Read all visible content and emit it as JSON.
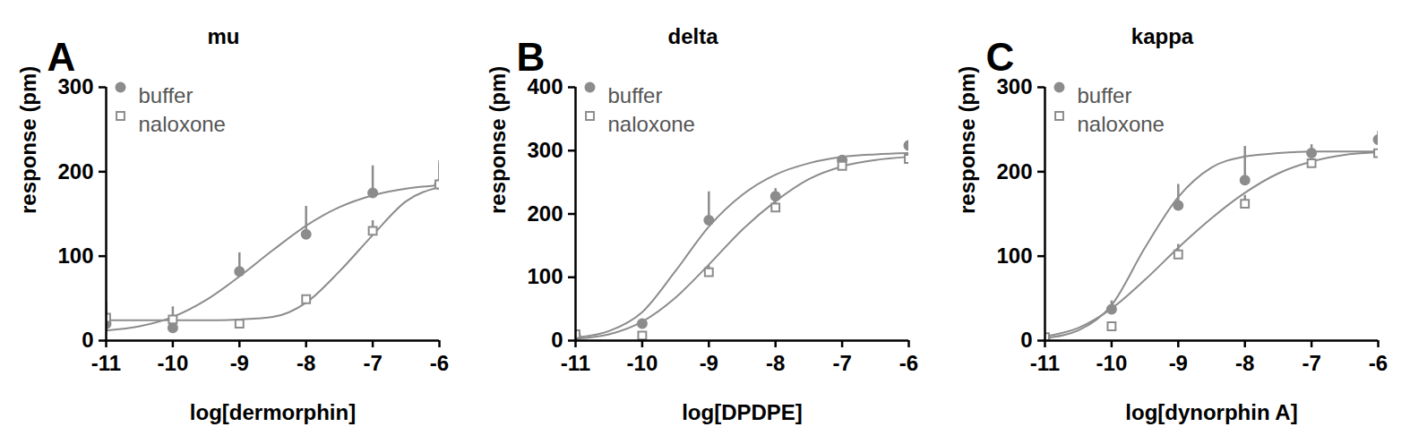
{
  "chart_data": [
    {
      "type": "line",
      "panel": "A",
      "title": "mu",
      "x_label": "log[dermorphin]",
      "y_label": "response (pm)",
      "xlim": [
        -11,
        -6
      ],
      "xticks": [
        -11,
        -10,
        -9,
        -8,
        -7,
        -6
      ],
      "ylim": [
        0,
        300
      ],
      "yticks": [
        0,
        100,
        200,
        300
      ],
      "legend": "top-left",
      "x": [
        -11,
        -10,
        -9,
        -8,
        -7,
        -6
      ],
      "series": [
        {
          "name": "buffer",
          "color": "#8c8c8c",
          "marker": "circle",
          "values": [
            20,
            15,
            82,
            126,
            175,
            185
          ],
          "errors": [
            5,
            25,
            22,
            33,
            32,
            28
          ],
          "fit": {
            "x": [
              -11,
              -10.5,
              -10,
              -9.5,
              -9,
              -8.5,
              -8,
              -7.5,
              -7,
              -6.5,
              -6
            ],
            "values": [
              12,
              17,
              28,
              48,
              76,
              107,
              136,
              158,
              172,
              180,
              184
            ]
          }
        },
        {
          "name": "naloxone",
          "color": "#8c8c8c",
          "marker": "square-open",
          "values": [
            27,
            25,
            20,
            49,
            130,
            185
          ],
          "errors": [
            18,
            5,
            4,
            5,
            12,
            25
          ],
          "fit": {
            "x": [
              -11,
              -10.5,
              -10,
              -9.5,
              -9,
              -8.5,
              -8,
              -7.5,
              -7,
              -6.5,
              -6
            ],
            "values": [
              24,
              24,
              24,
              24,
              25,
              28,
              45,
              82,
              125,
              165,
              182
            ]
          }
        }
      ]
    },
    {
      "type": "line",
      "panel": "B",
      "title": "delta",
      "x_label": "log[DPDPE]",
      "y_label": "response (pm)",
      "xlim": [
        -11,
        -6
      ],
      "xticks": [
        -11,
        -10,
        -9,
        -8,
        -7,
        -6
      ],
      "ylim": [
        0,
        400
      ],
      "yticks": [
        0,
        100,
        200,
        300,
        400
      ],
      "legend": "top-left",
      "x": [
        -11,
        -10,
        -9,
        -8,
        -7,
        -6
      ],
      "series": [
        {
          "name": "buffer",
          "color": "#8c8c8c",
          "marker": "circle",
          "values": [
            8,
            27,
            190,
            228,
            285,
            308
          ],
          "errors": [
            3,
            3,
            45,
            12,
            5,
            8
          ],
          "fit": {
            "x": [
              -11,
              -10.5,
              -10,
              -9.5,
              -9,
              -8.5,
              -8,
              -7.5,
              -7,
              -6.5,
              -6
            ],
            "values": [
              5,
              15,
              45,
              110,
              180,
              230,
              262,
              280,
              290,
              294,
              296
            ]
          }
        },
        {
          "name": "naloxone",
          "color": "#8c8c8c",
          "marker": "square-open",
          "values": [
            10,
            8,
            108,
            210,
            276,
            287
          ],
          "errors": [
            3,
            3,
            10,
            8,
            5,
            5
          ],
          "fit": {
            "x": [
              -11,
              -10.5,
              -10,
              -9.5,
              -9,
              -8.5,
              -8,
              -7.5,
              -7,
              -6.5,
              -6
            ],
            "values": [
              3,
              10,
              30,
              68,
              120,
              175,
              220,
              255,
              275,
              285,
              290
            ]
          }
        }
      ]
    },
    {
      "type": "line",
      "panel": "C",
      "title": "kappa",
      "x_label": "log[dynorphin A]",
      "y_label": "response (pm)",
      "xlim": [
        -11,
        -6
      ],
      "xticks": [
        -11,
        -10,
        -9,
        -8,
        -7,
        -6
      ],
      "ylim": [
        0,
        300
      ],
      "yticks": [
        0,
        100,
        200,
        300
      ],
      "legend": "top-left",
      "x": [
        -11,
        -10,
        -9,
        -8,
        -7,
        -6
      ],
      "series": [
        {
          "name": "buffer",
          "color": "#8c8c8c",
          "marker": "circle",
          "values": [
            3,
            37,
            160,
            190,
            222,
            238
          ],
          "errors": [
            2,
            10,
            25,
            40,
            10,
            10
          ],
          "fit": {
            "x": [
              -11,
              -10.5,
              -10,
              -9.5,
              -9,
              -8.5,
              -8,
              -7.5,
              -7,
              -6.5,
              -6
            ],
            "values": [
              3,
              12,
              42,
              110,
              170,
              205,
              218,
              222,
              224,
              224,
              224
            ]
          }
        },
        {
          "name": "naloxone",
          "color": "#8c8c8c",
          "marker": "square-open",
          "values": [
            4,
            17,
            102,
            162,
            210,
            222
          ],
          "errors": [
            2,
            3,
            12,
            10,
            5,
            5
          ],
          "fit": {
            "x": [
              -11,
              -10.5,
              -10,
              -9.5,
              -9,
              -8.5,
              -8,
              -7.5,
              -7,
              -6.5,
              -6
            ],
            "values": [
              5,
              15,
              38,
              72,
              110,
              145,
              175,
              198,
              212,
              220,
              223
            ]
          }
        }
      ]
    }
  ]
}
